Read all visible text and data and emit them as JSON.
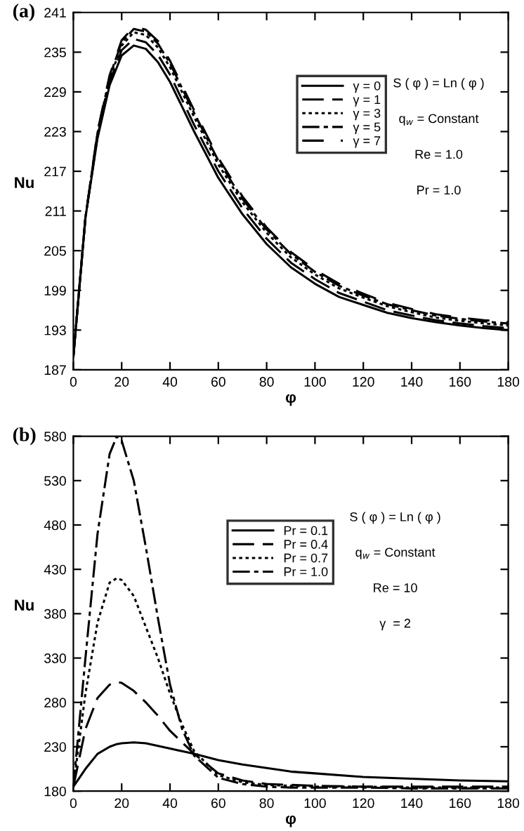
{
  "chart_data": [
    {
      "type": "line",
      "title": "(a)",
      "xlabel": "φ",
      "ylabel": "Nu",
      "xlim": [
        0,
        180
      ],
      "ylim": [
        187,
        241
      ],
      "xticks": [
        0,
        20,
        40,
        60,
        80,
        100,
        120,
        140,
        160,
        180
      ],
      "yticks": [
        187,
        193,
        199,
        205,
        211,
        217,
        223,
        229,
        235,
        241
      ],
      "grid": false,
      "legend": "top right",
      "annotations": [
        "S ( φ ) = Ln ( φ )",
        "q$_{w}$ = Constant",
        "Re = 1.0",
        "Pr = 1.0"
      ],
      "x": [
        0,
        5,
        10,
        15,
        20,
        25,
        30,
        35,
        40,
        50,
        60,
        70,
        80,
        90,
        100,
        110,
        120,
        130,
        140,
        150,
        160,
        170,
        180
      ],
      "series": [
        {
          "name": "γ = 0",
          "color": "#000000",
          "line_style": "solid",
          "values": [
            189,
            210,
            222,
            230,
            234.5,
            236,
            235.5,
            233.5,
            230.5,
            223,
            216,
            210.5,
            206,
            202.5,
            200,
            198,
            196.8,
            195.6,
            194.8,
            194.2,
            193.7,
            193.3,
            193
          ]
        },
        {
          "name": "γ = 1",
          "color": "#000000",
          "line_style": "longdash",
          "values": [
            189,
            210,
            222.3,
            230.5,
            235.3,
            237,
            236.5,
            234.6,
            231.6,
            224,
            217,
            211.4,
            206.8,
            203.2,
            200.7,
            198.6,
            197.3,
            196,
            195.2,
            194.5,
            194,
            193.6,
            193.3
          ]
        },
        {
          "name": "γ = 3",
          "color": "#000000",
          "line_style": "dotted",
          "values": [
            189,
            210,
            222.6,
            231,
            236,
            238,
            237.6,
            235.7,
            232.7,
            225.2,
            218,
            212.3,
            207.7,
            204,
            201.4,
            199.3,
            197.9,
            196.6,
            195.7,
            194.9,
            194.4,
            194,
            193.7
          ]
        },
        {
          "name": "γ = 5",
          "color": "#000000",
          "line_style": "dashdot",
          "values": [
            189,
            210,
            222.8,
            231.3,
            236.5,
            238.5,
            238.1,
            236.3,
            233.3,
            225.8,
            218.6,
            212.8,
            208.2,
            204.5,
            201.8,
            199.7,
            198.2,
            196.9,
            196,
            195.2,
            194.7,
            194.3,
            194
          ]
        },
        {
          "name": "γ = 7",
          "color": "#000000",
          "line_style": "sparsedash",
          "values": [
            189,
            210,
            223,
            231.5,
            236.8,
            238.8,
            238.4,
            236.7,
            233.7,
            226.2,
            219,
            213.2,
            208.5,
            204.8,
            202.1,
            200,
            198.5,
            197.1,
            196.2,
            195.4,
            194.9,
            194.5,
            194.2
          ]
        }
      ]
    },
    {
      "type": "line",
      "title": "(b)",
      "xlabel": "φ",
      "ylabel": "Nu",
      "xlim": [
        0,
        180
      ],
      "ylim": [
        180,
        580
      ],
      "xticks": [
        0,
        20,
        40,
        60,
        80,
        100,
        120,
        140,
        160,
        180
      ],
      "yticks": [
        180,
        230,
        280,
        330,
        380,
        430,
        480,
        530,
        580
      ],
      "grid": false,
      "legend": "top",
      "annotations": [
        "S ( φ ) = Ln ( φ )",
        "q$_{w}$ = Constant",
        "Re = 10",
        "γ  = 2"
      ],
      "x": [
        0,
        5,
        10,
        15,
        18,
        20,
        25,
        30,
        35,
        40,
        45,
        50,
        60,
        70,
        80,
        90,
        100,
        120,
        140,
        160,
        180
      ],
      "series": [
        {
          "name": "Pr = 0.1",
          "color": "#000000",
          "line_style": "solid",
          "values": [
            185,
            205,
            222,
            230,
            233,
            234,
            235,
            234,
            231,
            228,
            225,
            222,
            215,
            210,
            206,
            202,
            200,
            196,
            194,
            192,
            191
          ]
        },
        {
          "name": "Pr = 0.4",
          "color": "#000000",
          "line_style": "longdash",
          "values": [
            185,
            250,
            285,
            300,
            303,
            302,
            293,
            280,
            265,
            248,
            235,
            222,
            200,
            192,
            188,
            187,
            186,
            185,
            185,
            185,
            185
          ]
        },
        {
          "name": "Pr = 0.7",
          "color": "#000000",
          "line_style": "dotted",
          "values": [
            185,
            290,
            370,
            415,
            420,
            418,
            400,
            365,
            330,
            290,
            255,
            225,
            198,
            190,
            187,
            186,
            185,
            185,
            184,
            184,
            184
          ]
        },
        {
          "name": "Pr = 1.0",
          "color": "#000000",
          "line_style": "dashdot",
          "values": [
            185,
            330,
            470,
            560,
            580,
            575,
            530,
            455,
            375,
            300,
            250,
            220,
            195,
            188,
            185,
            184,
            184,
            184,
            183,
            183,
            183
          ]
        }
      ]
    }
  ]
}
